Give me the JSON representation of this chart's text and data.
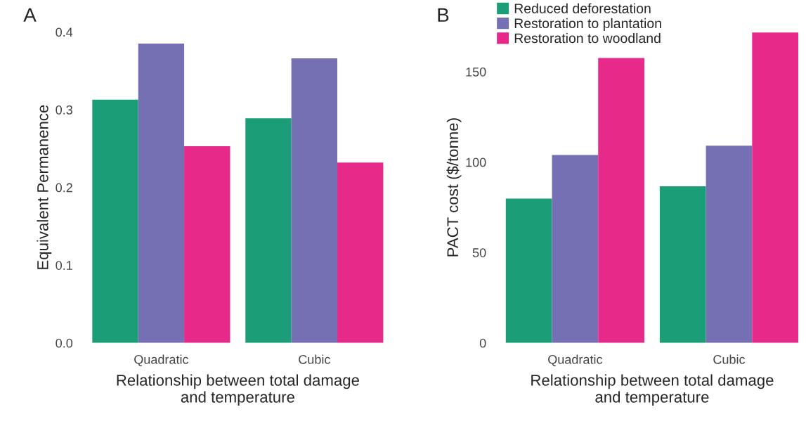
{
  "chart_data": [
    {
      "type": "bar",
      "title": "A",
      "xlabel": "Relationship between total damage\nand temperature",
      "ylabel": "Equivalent Permanence",
      "categories": [
        "Quadratic",
        "Cubic"
      ],
      "series": [
        {
          "color": "#1b9e77",
          "values": [
            0.313,
            0.289
          ]
        },
        {
          "color": "#7570b3",
          "values": [
            0.385,
            0.366
          ]
        },
        {
          "color": "#e7298a",
          "values": [
            0.253,
            0.232
          ]
        }
      ],
      "ylim": [
        0,
        0.4
      ],
      "yticks": [
        {
          "value": 0,
          "label": "0.0"
        },
        0.1,
        0.2,
        0.3,
        0.4
      ],
      "grid": false,
      "legend": false
    },
    {
      "type": "bar",
      "title": "B",
      "xlabel": "Relationship between total damage\nand temperature",
      "ylabel": "PACT cost ($/tonne)",
      "categories": [
        "Quadratic",
        "Cubic"
      ],
      "series": [
        {
          "name": "Reduced deforestation",
          "color": "#1b9e77",
          "values": [
            79.8,
            86.6
          ]
        },
        {
          "name": "Restoration to plantation",
          "color": "#7570b3",
          "values": [
            103.9,
            109.1
          ]
        },
        {
          "name": "Restoration to woodland",
          "color": "#e7298a",
          "values": [
            157.6,
            171.7
          ]
        }
      ],
      "ylim": [
        0,
        172
      ],
      "yticks": [
        0,
        50,
        100,
        150
      ],
      "grid": false,
      "legend": "top left"
    }
  ]
}
